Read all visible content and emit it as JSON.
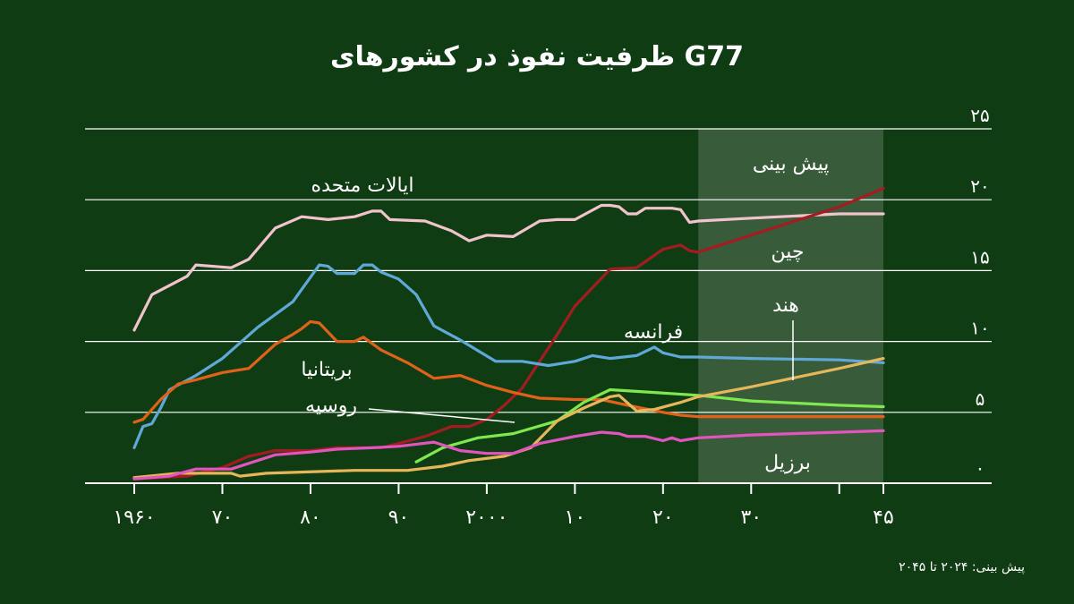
{
  "chart_data": {
    "type": "line",
    "title": "ظرفیت نفوذ در کشورهای G77",
    "footnote": "پیش بینی: ۲۰۲۴ تا ۲۰۴۵",
    "forecast_label": "پیش بینی",
    "forecast_range": [
      2024,
      2045
    ],
    "xlim": [
      1960,
      2045
    ],
    "ylim": [
      0,
      25
    ],
    "grid": true,
    "x_ticks": [
      {
        "value": 1960,
        "label": "۱۹۶۰"
      },
      {
        "value": 1970,
        "label": "۷۰"
      },
      {
        "value": 1980,
        "label": "۸۰"
      },
      {
        "value": 1990,
        "label": "۹۰"
      },
      {
        "value": 2000,
        "label": "۲۰۰۰"
      },
      {
        "value": 2010,
        "label": "۱۰"
      },
      {
        "value": 2020,
        "label": "۲۰"
      },
      {
        "value": 2030,
        "label": "۳۰"
      },
      {
        "value": 2045,
        "label": "۴۵"
      }
    ],
    "x_minor_ticks": [
      2040
    ],
    "y_ticks": [
      {
        "value": 0,
        "label": "۰"
      },
      {
        "value": 5,
        "label": "۵"
      },
      {
        "value": 10,
        "label": "۱۰"
      },
      {
        "value": 15,
        "label": "۱۵"
      },
      {
        "value": 20,
        "label": "۲۰"
      },
      {
        "value": 25,
        "label": "۲۵"
      }
    ],
    "series": [
      {
        "name": "ایالات متحده",
        "color": "#f2c3cc",
        "points": [
          [
            1960,
            10.8
          ],
          [
            1962,
            13.3
          ],
          [
            1966,
            14.6
          ],
          [
            1967,
            15.4
          ],
          [
            1971,
            15.2
          ],
          [
            1973,
            15.8
          ],
          [
            1976,
            18.0
          ],
          [
            1979,
            18.8
          ],
          [
            1982,
            18.6
          ],
          [
            1985,
            18.8
          ],
          [
            1987,
            19.2
          ],
          [
            1988,
            19.2
          ],
          [
            1989,
            18.6
          ],
          [
            1993,
            18.5
          ],
          [
            1996,
            17.8
          ],
          [
            1998,
            17.1
          ],
          [
            2000,
            17.5
          ],
          [
            2003,
            17.4
          ],
          [
            2006,
            18.5
          ],
          [
            2008,
            18.6
          ],
          [
            2010,
            18.6
          ],
          [
            2013,
            19.6
          ],
          [
            2014,
            19.6
          ],
          [
            2015,
            19.5
          ],
          [
            2016,
            19.0
          ],
          [
            2017,
            19.0
          ],
          [
            2018,
            19.4
          ],
          [
            2020,
            19.4
          ],
          [
            2021,
            19.4
          ],
          [
            2022,
            19.3
          ],
          [
            2023,
            18.4
          ],
          [
            2024,
            18.5
          ],
          [
            2030,
            18.7
          ],
          [
            2040,
            19.0
          ],
          [
            2045,
            19.0
          ]
        ]
      },
      {
        "name": "چین",
        "color": "#a31c22",
        "points": [
          [
            1960,
            0.3
          ],
          [
            1966,
            0.5
          ],
          [
            1970,
            1.1
          ],
          [
            1973,
            1.9
          ],
          [
            1976,
            2.3
          ],
          [
            1980,
            2.3
          ],
          [
            1983,
            2.5
          ],
          [
            1988,
            2.5
          ],
          [
            1990,
            2.8
          ],
          [
            1993,
            3.3
          ],
          [
            1996,
            4.0
          ],
          [
            1998,
            4.0
          ],
          [
            2000,
            4.5
          ],
          [
            2002,
            5.5
          ],
          [
            2004,
            6.7
          ],
          [
            2006,
            8.6
          ],
          [
            2008,
            10.5
          ],
          [
            2010,
            12.5
          ],
          [
            2014,
            15.1
          ],
          [
            2017,
            15.2
          ],
          [
            2020,
            16.5
          ],
          [
            2022,
            16.8
          ],
          [
            2023,
            16.4
          ],
          [
            2024,
            16.3
          ],
          [
            2030,
            17.5
          ],
          [
            2040,
            19.5
          ],
          [
            2045,
            20.8
          ]
        ]
      },
      {
        "name": "فرانسه",
        "color": "#5fa8d8",
        "points": [
          [
            1960,
            2.5
          ],
          [
            1961,
            4.0
          ],
          [
            1962,
            4.2
          ],
          [
            1963,
            5.3
          ],
          [
            1964,
            6.6
          ],
          [
            1967,
            7.6
          ],
          [
            1970,
            8.8
          ],
          [
            1974,
            11.0
          ],
          [
            1978,
            12.8
          ],
          [
            1981,
            15.4
          ],
          [
            1982,
            15.3
          ],
          [
            1983,
            14.8
          ],
          [
            1985,
            14.8
          ],
          [
            1986,
            15.4
          ],
          [
            1987,
            15.4
          ],
          [
            1988,
            14.9
          ],
          [
            1990,
            14.4
          ],
          [
            1992,
            13.3
          ],
          [
            1994,
            11.1
          ],
          [
            1997,
            10.1
          ],
          [
            2001,
            8.6
          ],
          [
            2004,
            8.6
          ],
          [
            2007,
            8.3
          ],
          [
            2010,
            8.6
          ],
          [
            2012,
            9.0
          ],
          [
            2014,
            8.8
          ],
          [
            2017,
            9.0
          ],
          [
            2019,
            9.6
          ],
          [
            2020,
            9.2
          ],
          [
            2022,
            8.9
          ],
          [
            2024,
            8.9
          ],
          [
            2030,
            8.8
          ],
          [
            2040,
            8.7
          ],
          [
            2045,
            8.5
          ]
        ]
      },
      {
        "name": "بریتانیا",
        "color": "#e0621a",
        "points": [
          [
            1960,
            4.3
          ],
          [
            1961,
            4.5
          ],
          [
            1963,
            5.9
          ],
          [
            1965,
            7.0
          ],
          [
            1967,
            7.3
          ],
          [
            1970,
            7.8
          ],
          [
            1973,
            8.1
          ],
          [
            1976,
            9.8
          ],
          [
            1978,
            10.5
          ],
          [
            1979,
            10.9
          ],
          [
            1980,
            11.4
          ],
          [
            1981,
            11.3
          ],
          [
            1983,
            10.0
          ],
          [
            1985,
            10.0
          ],
          [
            1986,
            10.3
          ],
          [
            1988,
            9.4
          ],
          [
            1991,
            8.5
          ],
          [
            1994,
            7.4
          ],
          [
            1997,
            7.6
          ],
          [
            2000,
            6.9
          ],
          [
            2003,
            6.4
          ],
          [
            2006,
            6.0
          ],
          [
            2010,
            5.9
          ],
          [
            2013,
            5.9
          ],
          [
            2016,
            5.5
          ],
          [
            2020,
            5.0
          ],
          [
            2022,
            4.8
          ],
          [
            2024,
            4.7
          ],
          [
            2030,
            4.7
          ],
          [
            2040,
            4.7
          ],
          [
            2045,
            4.7
          ]
        ]
      },
      {
        "name": "روسیه",
        "color": "#7fe84e",
        "points": [
          [
            1992,
            1.5
          ],
          [
            1995,
            2.5
          ],
          [
            1999,
            3.2
          ],
          [
            2003,
            3.5
          ],
          [
            2008,
            4.4
          ],
          [
            2011,
            5.7
          ],
          [
            2014,
            6.6
          ],
          [
            2019,
            6.4
          ],
          [
            2024,
            6.2
          ],
          [
            2030,
            5.8
          ],
          [
            2040,
            5.5
          ],
          [
            2045,
            5.4
          ]
        ]
      },
      {
        "name": "هند",
        "color": "#e8b65a",
        "points": [
          [
            1960,
            0.4
          ],
          [
            1965,
            0.7
          ],
          [
            1971,
            0.7
          ],
          [
            1972,
            0.5
          ],
          [
            1975,
            0.7
          ],
          [
            1985,
            0.9
          ],
          [
            1991,
            0.9
          ],
          [
            1995,
            1.2
          ],
          [
            1998,
            1.6
          ],
          [
            2002,
            1.9
          ],
          [
            2005,
            2.5
          ],
          [
            2008,
            4.4
          ],
          [
            2011,
            5.3
          ],
          [
            2014,
            6.1
          ],
          [
            2015,
            6.2
          ],
          [
            2017,
            5.1
          ],
          [
            2019,
            5.2
          ],
          [
            2022,
            5.7
          ],
          [
            2024,
            6.1
          ],
          [
            2030,
            6.8
          ],
          [
            2040,
            8.1
          ],
          [
            2045,
            8.8
          ]
        ]
      },
      {
        "name": "برزیل",
        "color": "#e255be",
        "points": [
          [
            1960,
            0.3
          ],
          [
            1964,
            0.5
          ],
          [
            1967,
            1.0
          ],
          [
            1971,
            1.0
          ],
          [
            1973,
            1.4
          ],
          [
            1976,
            2.0
          ],
          [
            1980,
            2.2
          ],
          [
            1983,
            2.4
          ],
          [
            1987,
            2.5
          ],
          [
            1990,
            2.6
          ],
          [
            1994,
            2.9
          ],
          [
            1997,
            2.3
          ],
          [
            2000,
            2.1
          ],
          [
            2003,
            2.1
          ],
          [
            2006,
            2.8
          ],
          [
            2010,
            3.3
          ],
          [
            2013,
            3.6
          ],
          [
            2015,
            3.5
          ],
          [
            2016,
            3.3
          ],
          [
            2018,
            3.3
          ],
          [
            2020,
            3.0
          ],
          [
            2021,
            3.2
          ],
          [
            2022,
            3.0
          ],
          [
            2024,
            3.2
          ],
          [
            2030,
            3.4
          ],
          [
            2040,
            3.6
          ],
          [
            2045,
            3.7
          ]
        ]
      }
    ],
    "labels": [
      {
        "series": "ایالات متحده",
        "text": "ایالات متحده"
      },
      {
        "series": "چین",
        "text": "چین"
      },
      {
        "series": "فرانسه",
        "text": "فرانسه"
      },
      {
        "series": "بریتانیا",
        "text": "بریتانیا"
      },
      {
        "series": "روسیه",
        "text": "روسیه"
      },
      {
        "series": "هند",
        "text": "هند"
      },
      {
        "series": "برزیل",
        "text": "برزیل"
      }
    ]
  }
}
